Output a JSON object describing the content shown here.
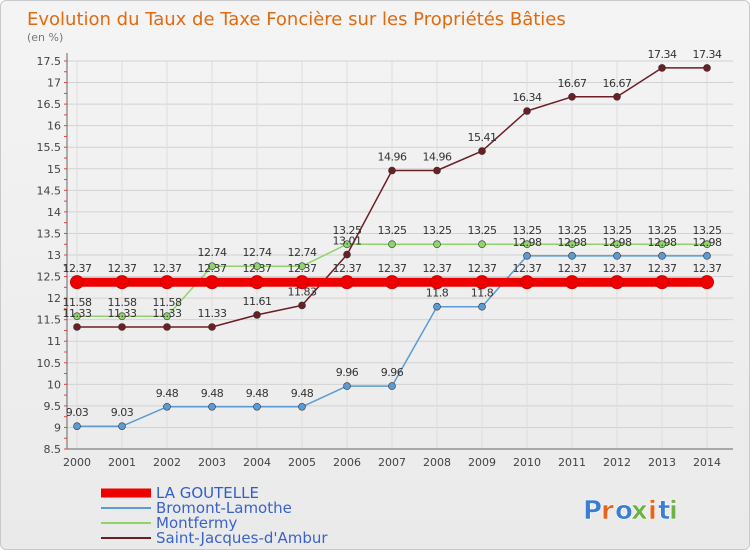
{
  "chart_data": {
    "type": "line",
    "title": "Evolution du Taux de Taxe Foncière sur les Propriétés Bâties",
    "subtitle": "(en %)",
    "x": [
      "2000",
      "2001",
      "2002",
      "2003",
      "2004",
      "2005",
      "2006",
      "2007",
      "2008",
      "2009",
      "2010",
      "2011",
      "2012",
      "2013",
      "2014"
    ],
    "ylim": [
      8.5,
      17.5
    ],
    "yticks": [
      "8.5",
      "9",
      "9.5",
      "10",
      "10.5",
      "11",
      "11.5",
      "12",
      "12.5",
      "13",
      "13.5",
      "14",
      "14.5",
      "15",
      "15.5",
      "16",
      "16.5",
      "17",
      "17.5"
    ],
    "grid": true,
    "legend_position": "bottom-left",
    "series": [
      {
        "name": "LA GOUTELLE",
        "color": "#ee0000",
        "emphasis": true,
        "values": [
          12.37,
          12.37,
          12.37,
          12.37,
          12.37,
          12.37,
          12.37,
          12.37,
          12.37,
          12.37,
          12.37,
          12.37,
          12.37,
          12.37,
          12.37
        ],
        "labels": [
          "12.37",
          "12.37",
          "12.37",
          "12.37",
          "12.37",
          "12.37",
          "12.37",
          "12.37",
          "12.37",
          "12.37",
          "12.37",
          "12.37",
          "12.37",
          "12.37",
          "12.37"
        ]
      },
      {
        "name": "Bromont-Lamothe",
        "color": "#5b9bd5",
        "values": [
          9.03,
          9.03,
          9.48,
          9.48,
          9.48,
          9.48,
          9.96,
          9.96,
          11.8,
          11.8,
          12.98,
          12.98,
          12.98,
          12.98,
          12.98
        ],
        "labels": [
          "9.03",
          "9.03",
          "9.48",
          "9.48",
          "9.48",
          "9.48",
          "9.96",
          "9.96",
          "11.8",
          "11.8",
          "12.98",
          "12.98",
          "12.98",
          "12.98",
          "12.98"
        ]
      },
      {
        "name": "Montfermy",
        "color": "#8fd36a",
        "values": [
          11.58,
          11.58,
          11.58,
          12.74,
          12.74,
          12.74,
          13.25,
          13.25,
          13.25,
          13.25,
          13.25,
          13.25,
          13.25,
          13.25,
          13.25
        ],
        "labels": [
          "11.58",
          "11.58",
          "11.58",
          "12.74",
          "12.74",
          "12.74",
          "13.25",
          "13.25",
          "13.25",
          "13.25",
          "13.25",
          "13.25",
          "13.25",
          "13.25",
          "13.25"
        ]
      },
      {
        "name": "Saint-Jacques-d'Ambur",
        "color": "#6b1e24",
        "values": [
          11.33,
          11.33,
          11.33,
          11.33,
          11.61,
          11.83,
          13.01,
          14.96,
          14.96,
          15.41,
          16.34,
          16.67,
          16.67,
          17.34,
          17.34
        ],
        "labels": [
          "11.33",
          "11.33",
          "11.33",
          "11.33",
          "11.61",
          "11.83",
          "13.01",
          "14.96",
          "14.96",
          "15.41",
          "16.34",
          "16.67",
          "16.67",
          "17.34",
          "17.34"
        ]
      }
    ]
  },
  "logo": {
    "text": "Proxiti",
    "colors": [
      "#3a7fd5",
      "#e8641b",
      "#3a7fd5",
      "#6ab344",
      "#e8641b",
      "#3a7fd5",
      "#6ab344"
    ]
  }
}
